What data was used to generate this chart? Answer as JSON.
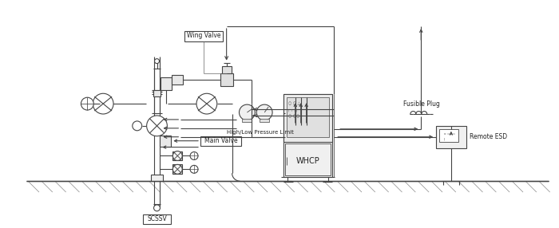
{
  "bg_color": "#ffffff",
  "line_color": "#444444",
  "line_width": 0.8,
  "text_color": "#222222",
  "labels": {
    "wing_valve": "Wing Valve",
    "main_valve": "Main Valve",
    "high_low": "High/Low Pressure Limit",
    "whcp": "WHCP",
    "scssv": "SCSSV",
    "fusible_plug": "Fusible Plug",
    "remote_esd": "Remote ESD"
  },
  "figsize": [
    7.0,
    2.86
  ],
  "dpi": 100
}
